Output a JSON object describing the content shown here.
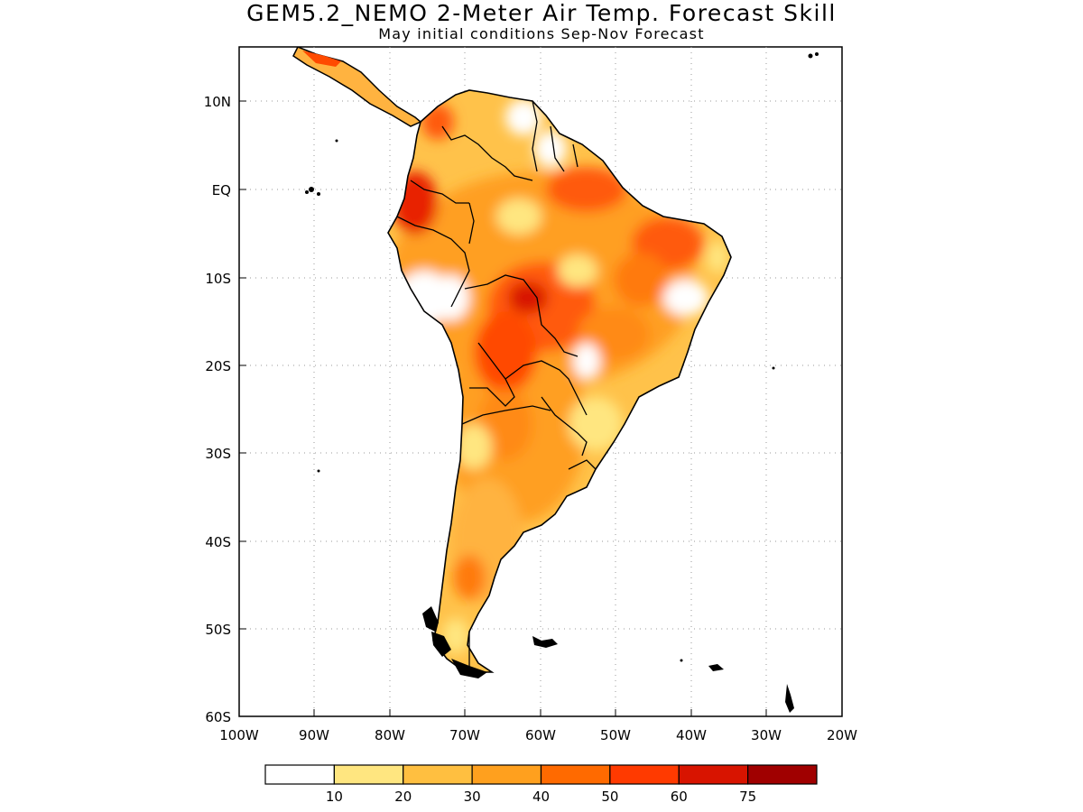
{
  "header": {
    "title": "GEM5.2_NEMO 2-Meter Air Temp. Forecast Skill",
    "subtitle": "May initial conditions  Sep-Nov Forecast"
  },
  "map": {
    "lon_labels": [
      "100W",
      "90W",
      "80W",
      "70W",
      "60W",
      "50W",
      "40W",
      "30W",
      "20W"
    ],
    "lat_labels": [
      "10N",
      "EQ",
      "10S",
      "20S",
      "30S",
      "40S",
      "50S",
      "60S"
    ],
    "region": "South America",
    "gridlines": "dotted"
  },
  "colorbar": {
    "labels": [
      "10",
      "20",
      "30",
      "40",
      "50",
      "60",
      "75"
    ],
    "colors": [
      "#ffffff",
      "#ffe680",
      "#ffbf40",
      "#ffa01e",
      "#ff6a00",
      "#ff3a00",
      "#d81400",
      "#a00000"
    ]
  },
  "chart_data": {
    "type": "heatmap",
    "title": "GEM5.2_NEMO 2-Meter Air Temp. Forecast Skill",
    "subtitle": "May initial conditions  Sep-Nov Forecast",
    "xlim": [
      -100,
      -20
    ],
    "ylim": [
      -60,
      16
    ],
    "levels": [
      10,
      20,
      30,
      40,
      50,
      60,
      75
    ],
    "legend": "bottom"
  }
}
